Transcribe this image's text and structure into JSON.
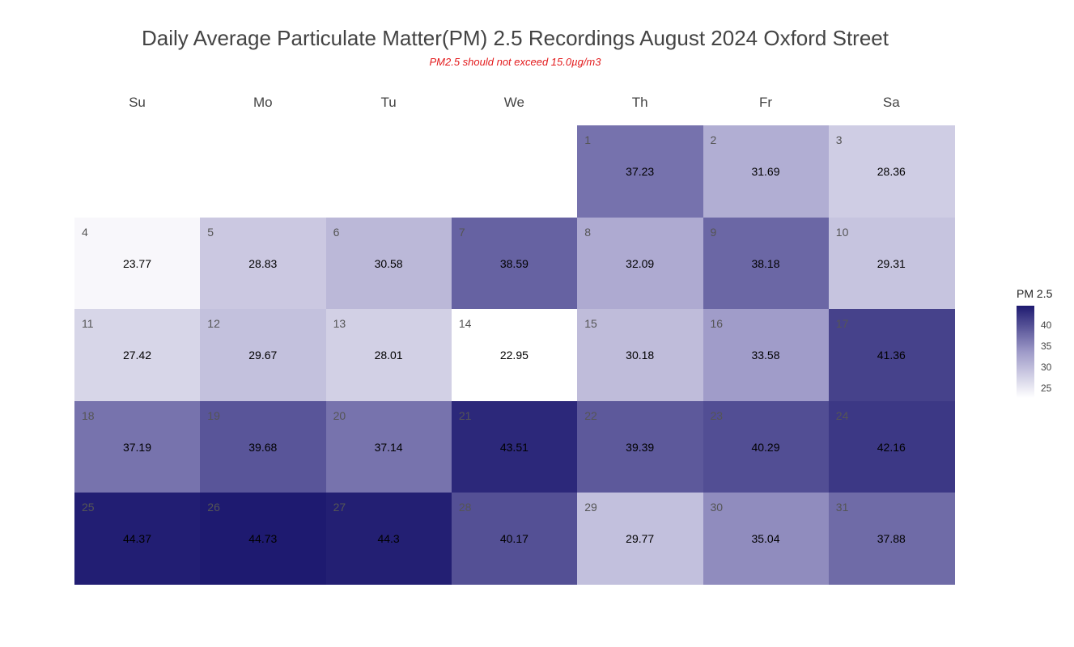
{
  "chart_data": {
    "type": "heatmap",
    "title": "Daily Average Particulate Matter(PM) 2.5 Recordings August 2024 Oxford Street",
    "subtitle": "PM2.5 should not exceed 15.0µg/m3",
    "weekdays": [
      "Su",
      "Mo",
      "Tu",
      "We",
      "Th",
      "Fr",
      "Sa"
    ],
    "first_weekday_index": 4,
    "days": [
      1,
      2,
      3,
      4,
      5,
      6,
      7,
      8,
      9,
      10,
      11,
      12,
      13,
      14,
      15,
      16,
      17,
      18,
      19,
      20,
      21,
      22,
      23,
      24,
      25,
      26,
      27,
      28,
      29,
      30,
      31
    ],
    "values": [
      37.23,
      31.69,
      28.36,
      23.77,
      28.83,
      30.58,
      38.59,
      32.09,
      38.18,
      29.31,
      27.42,
      29.67,
      28.01,
      22.95,
      30.18,
      33.58,
      41.36,
      37.19,
      39.68,
      37.14,
      43.51,
      39.39,
      40.29,
      42.16,
      44.37,
      44.73,
      44.3,
      40.17,
      29.77,
      35.04,
      37.88
    ],
    "value_labels": [
      "37.23",
      "31.69",
      "28.36",
      "23.77",
      "28.83",
      "30.58",
      "38.59",
      "32.09",
      "38.18",
      "29.31",
      "27.42",
      "29.67",
      "28.01",
      "22.95",
      "30.18",
      "33.58",
      "41.36",
      "37.19",
      "39.68",
      "37.14",
      "43.51",
      "39.39",
      "40.29",
      "42.16",
      "44.37",
      "44.73",
      "44.3",
      "40.17",
      "29.77",
      "35.04",
      "37.88"
    ],
    "legend": {
      "title": "PM 2.5",
      "ticks": [
        25,
        30,
        35,
        40
      ],
      "range": [
        22.95,
        44.73
      ],
      "placement": "right"
    },
    "color_scale": {
      "low": "#ffffff",
      "mid": "#9e9ac8",
      "high": "#1e1a70"
    }
  }
}
